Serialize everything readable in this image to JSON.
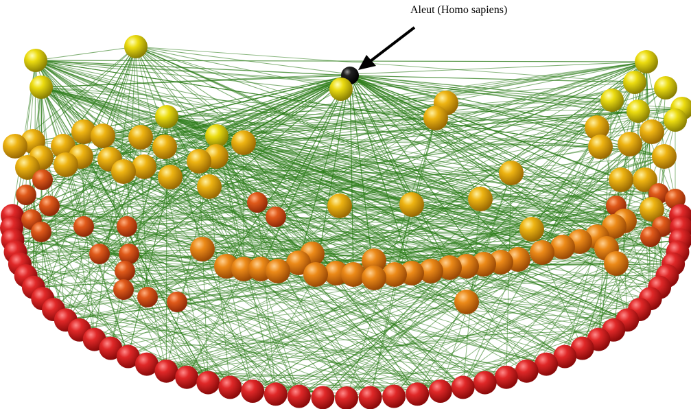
{
  "annotation": {
    "label": "Aleut (Homo sapiens)"
  },
  "colors": {
    "edge": "#2e7d1a",
    "highlight_node": "#111111",
    "arrow": "#000000",
    "ring_gradient": [
      "#f0e010",
      "#e8a810",
      "#e06a18",
      "#d42020"
    ]
  },
  "legend": {
    "layers": [
      {
        "id": "outer-red"
      },
      {
        "id": "orange-arc"
      },
      {
        "id": "orange-inner"
      },
      {
        "id": "yellow-upper"
      }
    ]
  }
}
